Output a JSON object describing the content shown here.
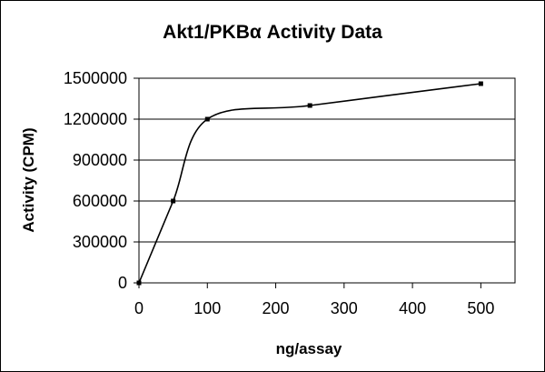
{
  "chart_data": {
    "type": "line",
    "title": "Akt1/PKBα Activity Data",
    "xlabel": "ng/assay",
    "ylabel": "Activity (CPM)",
    "xlim": [
      0,
      550
    ],
    "ylim": [
      0,
      1500000
    ],
    "x_ticks": [
      0,
      100,
      200,
      300,
      400,
      500
    ],
    "y_ticks": [
      0,
      300000,
      600000,
      900000,
      1200000,
      1500000
    ],
    "x_tick_labels": [
      "0",
      "100",
      "200",
      "300",
      "400",
      "500"
    ],
    "y_tick_labels": [
      "0",
      "300000",
      "600000",
      "900000",
      "1200000",
      "1500000"
    ],
    "grid": "horizontal",
    "legend": "none",
    "smooth": true,
    "series": [
      {
        "x": [
          0,
          50,
          100,
          250,
          500
        ],
        "y": [
          0,
          600000,
          1200000,
          1300000,
          1460000
        ],
        "color": "#000000",
        "marker": "square"
      }
    ]
  }
}
